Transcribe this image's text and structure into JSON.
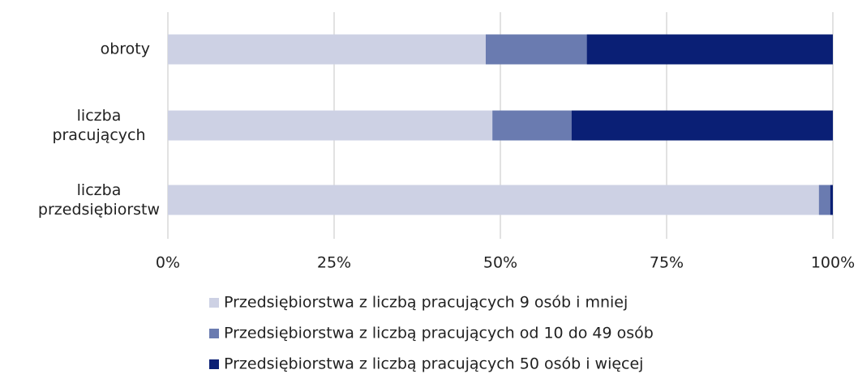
{
  "chart_data": {
    "type": "stacked_barh",
    "categories": [
      "obroty",
      "liczba pracujących",
      "liczba przedsiębiorstw"
    ],
    "series": [
      {
        "name": "Przedsiębiorstwa z liczbą pracujących 9 osób i mniej",
        "color": "#cdd1e4",
        "values": [
          47.8,
          48.8,
          97.9
        ]
      },
      {
        "name": "Przedsiębiorstwa z liczbą pracujących od 10 do 49 osób",
        "color": "#6a7bb0",
        "values": [
          15.2,
          11.9,
          1.7
        ]
      },
      {
        "name": "Przedsiębiorstwa z liczbą pracujących 50 osób i więcej",
        "color": "#0a1f75",
        "values": [
          37.0,
          39.3,
          0.4
        ]
      }
    ],
    "xlim": [
      0,
      100
    ],
    "xticks": [
      {
        "value": 0,
        "label": "0%"
      },
      {
        "value": 25,
        "label": "25%"
      },
      {
        "value": 50,
        "label": "50%"
      },
      {
        "value": 75,
        "label": "75%"
      },
      {
        "value": 100,
        "label": "100%"
      }
    ],
    "grid": true,
    "legend": "bottom"
  }
}
